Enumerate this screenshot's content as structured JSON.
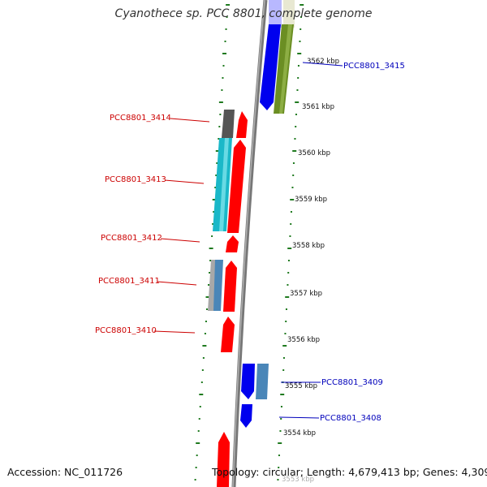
{
  "title": "Cyanothece sp. PCC 8801, complete genome",
  "footer": {
    "accession": "Accession: NC_011726",
    "topology": "Topology: circular; Length: 4,679,413 bp; Genes: 4,309"
  },
  "colors": {
    "backbone": "#777777",
    "tick": "#1f7a1f",
    "label_forward": "#cc0000",
    "label_reverse": "#0000bb",
    "gene_red": "#ff0000",
    "gene_blue": "#0000ee",
    "gene_cyan": "#1ab8c8",
    "gene_dark_gray": "#555555",
    "gene_olive": "#6b8e23",
    "gene_steel": "#4a86b8",
    "gene_light_gray": "#a8a8a8",
    "gene_lavender": "#b8b8ff",
    "gene_beige": "#e8e8d2"
  },
  "scale_labels": [
    "3562 kbp",
    "3561 kbp",
    "3560 kbp",
    "3559 kbp",
    "3558 kbp",
    "3557 kbp",
    "3556 kbp",
    "3555 kbp",
    "3554 kbp",
    "3553 kbp"
  ],
  "gene_labels": {
    "g3415": "PCC8801_3415",
    "g3414": "PCC8801_3414",
    "g3413": "PCC8801_3413",
    "g3412": "PCC8801_3412",
    "g3411": "PCC8801_3411",
    "g3410": "PCC8801_3410",
    "g3409": "PCC8801_3409",
    "g3408": "PCC8801_3408"
  }
}
